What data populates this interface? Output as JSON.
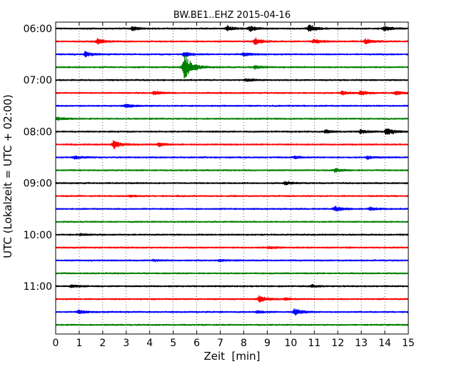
{
  "chart_data": {
    "type": "line",
    "title": "BW.BE1..EHZ 2015-04-16",
    "xlabel": "Zeit  [min]",
    "ylabel": "UTC (Lokalzeit = UTC + 02:00)",
    "xlim": [
      0,
      15
    ],
    "x_ticks": [
      "0",
      "1",
      "2",
      "3",
      "4",
      "5",
      "6",
      "7",
      "8",
      "9",
      "10",
      "11",
      "12",
      "13",
      "14",
      "15"
    ],
    "x_grid": "dotted vertical lines at each minute",
    "y_ticks": [
      "06:00",
      "07:00",
      "08:00",
      "09:00",
      "10:00",
      "11:00"
    ],
    "trace_interval_minutes": 15,
    "trace_colors": [
      "#000000",
      "#ff0000",
      "#0000ff",
      "#008000"
    ],
    "traces": [
      {
        "start": "06:00",
        "color": "#000000",
        "events": [
          {
            "t": 3.3,
            "amp": 0.35
          },
          {
            "t": 7.3,
            "amp": 0.5
          },
          {
            "t": 8.3,
            "amp": 0.45
          },
          {
            "t": 10.8,
            "amp": 0.6
          },
          {
            "t": 14.0,
            "amp": 0.45
          }
        ]
      },
      {
        "start": "06:15",
        "color": "#ff0000",
        "events": [
          {
            "t": 1.8,
            "amp": 0.45
          },
          {
            "t": 8.5,
            "amp": 0.5
          },
          {
            "t": 11.0,
            "amp": 0.4
          },
          {
            "t": 13.2,
            "amp": 0.45
          }
        ]
      },
      {
        "start": "06:30",
        "color": "#0000ff",
        "events": [
          {
            "t": 1.3,
            "amp": 0.4
          },
          {
            "t": 5.5,
            "amp": 0.45
          },
          {
            "t": 8.0,
            "amp": 0.35
          }
        ]
      },
      {
        "start": "06:45",
        "color": "#008000",
        "events": [
          {
            "t": 5.5,
            "amp": 2.4
          },
          {
            "t": 8.5,
            "amp": 0.3
          }
        ]
      },
      {
        "start": "07:00",
        "color": "#000000",
        "events": [
          {
            "t": 8.1,
            "amp": 0.25
          }
        ]
      },
      {
        "start": "07:15",
        "color": "#ff0000",
        "events": [
          {
            "t": 4.2,
            "amp": 0.3
          },
          {
            "t": 12.2,
            "amp": 0.3
          },
          {
            "t": 13.0,
            "amp": 0.35
          },
          {
            "t": 14.5,
            "amp": 0.3
          }
        ]
      },
      {
        "start": "07:30",
        "color": "#0000ff",
        "events": [
          {
            "t": 3.0,
            "amp": 0.35
          }
        ]
      },
      {
        "start": "07:45",
        "color": "#008000",
        "events": [
          {
            "t": 0.1,
            "amp": 0.3
          }
        ]
      },
      {
        "start": "08:00",
        "color": "#000000",
        "events": [
          {
            "t": 11.5,
            "amp": 0.3
          },
          {
            "t": 13.0,
            "amp": 0.35
          },
          {
            "t": 14.1,
            "amp": 0.65
          }
        ]
      },
      {
        "start": "08:15",
        "color": "#ff0000",
        "events": [
          {
            "t": 2.5,
            "amp": 0.65
          },
          {
            "t": 4.4,
            "amp": 0.3
          }
        ]
      },
      {
        "start": "08:30",
        "color": "#0000ff",
        "events": [
          {
            "t": 0.8,
            "amp": 0.3
          },
          {
            "t": 10.2,
            "amp": 0.2
          },
          {
            "t": 13.3,
            "amp": 0.25
          }
        ]
      },
      {
        "start": "08:45",
        "color": "#008000",
        "events": [
          {
            "t": 11.9,
            "amp": 0.3
          }
        ]
      },
      {
        "start": "09:00",
        "color": "#000000",
        "events": [
          {
            "t": 9.8,
            "amp": 0.3
          }
        ]
      },
      {
        "start": "09:15",
        "color": "#ff0000",
        "events": [
          {
            "t": 3.2,
            "amp": 0.15
          }
        ]
      },
      {
        "start": "09:30",
        "color": "#0000ff",
        "events": [
          {
            "t": 11.9,
            "amp": 0.45
          },
          {
            "t": 13.4,
            "amp": 0.3
          }
        ]
      },
      {
        "start": "09:45",
        "color": "#008000",
        "events": []
      },
      {
        "start": "10:00",
        "color": "#000000",
        "events": [
          {
            "t": 1.1,
            "amp": 0.15
          }
        ]
      },
      {
        "start": "10:15",
        "color": "#ff0000",
        "events": [
          {
            "t": 9.1,
            "amp": 0.2
          }
        ]
      },
      {
        "start": "10:30",
        "color": "#0000ff",
        "events": [
          {
            "t": 4.2,
            "amp": 0.15
          },
          {
            "t": 7.0,
            "amp": 0.15
          }
        ]
      },
      {
        "start": "10:45",
        "color": "#008000",
        "events": []
      },
      {
        "start": "11:00",
        "color": "#000000",
        "events": [
          {
            "t": 0.7,
            "amp": 0.25
          },
          {
            "t": 10.9,
            "amp": 0.2
          }
        ]
      },
      {
        "start": "11:15",
        "color": "#ff0000",
        "events": [
          {
            "t": 8.7,
            "amp": 0.55
          },
          {
            "t": 9.8,
            "amp": 0.2
          }
        ]
      },
      {
        "start": "11:30",
        "color": "#0000ff",
        "events": [
          {
            "t": 1.0,
            "amp": 0.3
          },
          {
            "t": 8.6,
            "amp": 0.2
          },
          {
            "t": 10.2,
            "amp": 0.55
          }
        ]
      },
      {
        "start": "11:45",
        "color": "#008000",
        "events": []
      }
    ]
  }
}
